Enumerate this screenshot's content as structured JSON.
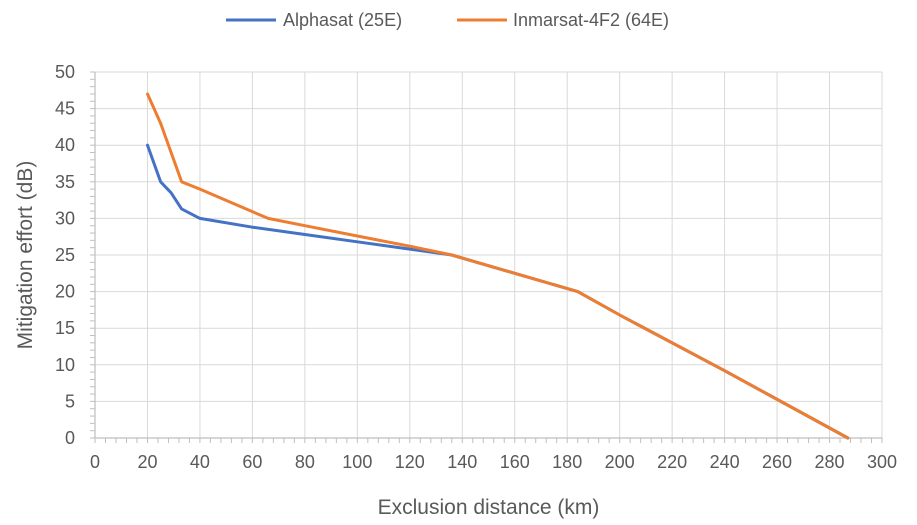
{
  "chart_data": {
    "type": "line",
    "title": "",
    "xlabel": "Exclusion distance (km)",
    "ylabel": "Mitigation effort (dB)",
    "xlim": [
      0,
      300
    ],
    "ylim": [
      0,
      50
    ],
    "x_ticks": [
      0,
      20,
      40,
      60,
      80,
      100,
      120,
      140,
      160,
      180,
      200,
      220,
      240,
      260,
      280,
      300
    ],
    "y_ticks": [
      0,
      5,
      10,
      15,
      20,
      25,
      30,
      35,
      40,
      45,
      50
    ],
    "grid": true,
    "legend_position": "top",
    "series": [
      {
        "name": "Alphasat (25E)",
        "color": "#4472c4",
        "points": [
          [
            20,
            40
          ],
          [
            25,
            35
          ],
          [
            29,
            33.5
          ],
          [
            33,
            31.3
          ],
          [
            40,
            30
          ],
          [
            60,
            28.8
          ],
          [
            80,
            27.8
          ],
          [
            100,
            26.8
          ],
          [
            120,
            25.8
          ],
          [
            136,
            25
          ],
          [
            160,
            22.5
          ],
          [
            184,
            20
          ],
          [
            200,
            16.8
          ],
          [
            240,
            9.2
          ],
          [
            287,
            0
          ]
        ]
      },
      {
        "name": "Inmarsat-4F2 (64E)",
        "color": "#ed7d31",
        "points": [
          [
            20,
            47
          ],
          [
            25,
            43
          ],
          [
            28,
            40
          ],
          [
            33,
            35
          ],
          [
            40,
            34
          ],
          [
            66,
            30
          ],
          [
            80,
            29
          ],
          [
            100,
            27.6
          ],
          [
            120,
            26.2
          ],
          [
            136,
            25
          ],
          [
            160,
            22.5
          ],
          [
            184,
            20
          ],
          [
            200,
            16.8
          ],
          [
            240,
            9.2
          ],
          [
            287,
            0
          ]
        ]
      }
    ]
  }
}
